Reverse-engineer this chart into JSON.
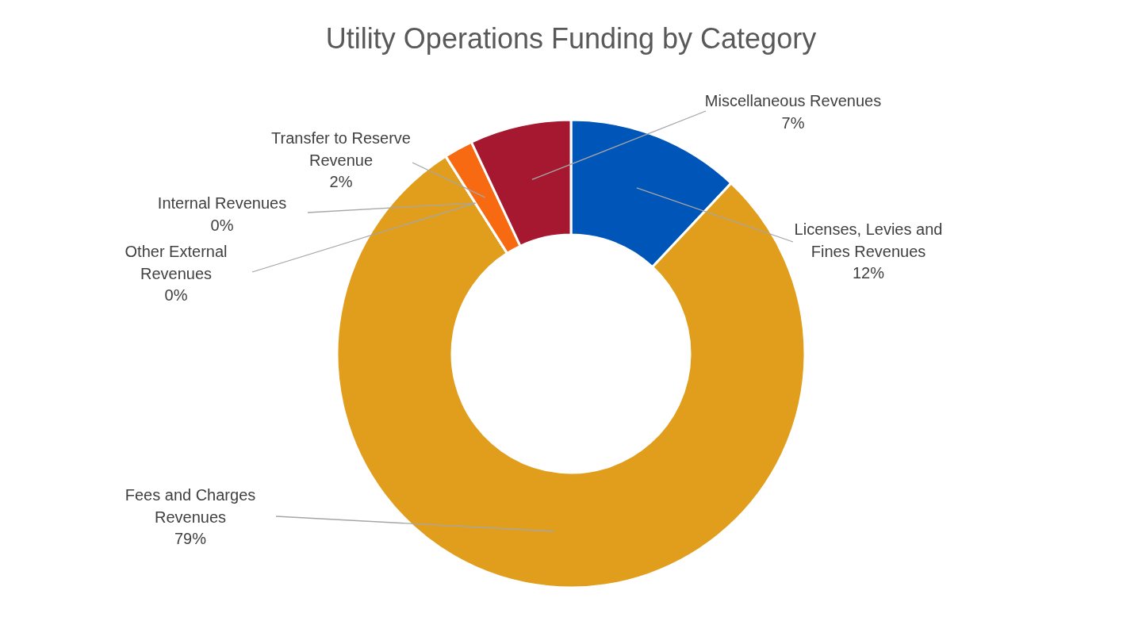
{
  "chart_data": {
    "type": "donut",
    "title": "Utility Operations Funding by Category",
    "categories": [
      "Licenses, Levies and Fines Revenues",
      "Fees and Charges Revenues",
      "Other External Revenues",
      "Internal Revenues",
      "Transfer to Reserve Revenue",
      "Miscellaneous Revenues"
    ],
    "values": [
      12,
      79,
      0,
      0,
      2,
      7
    ],
    "value_labels": [
      "12%",
      "79%",
      "0%",
      "0%",
      "2%",
      "7%"
    ],
    "colors": [
      "#0055b8",
      "#e09e1c",
      "#a5a5a5",
      "#5b9bd5",
      "#f86a12",
      "#a51830"
    ]
  }
}
